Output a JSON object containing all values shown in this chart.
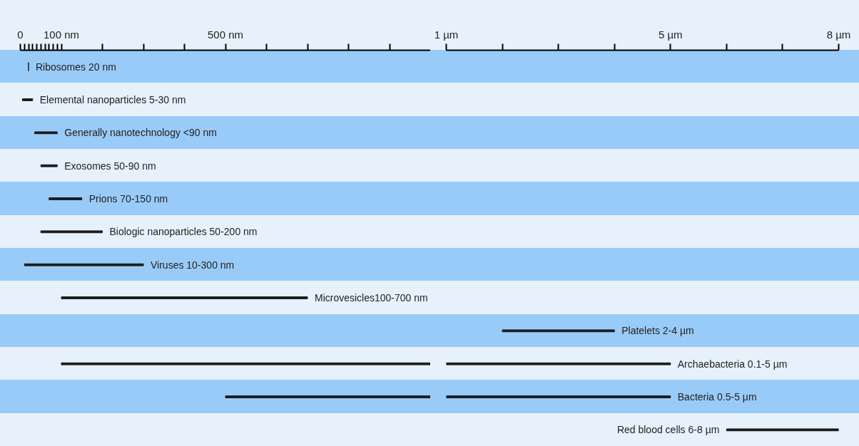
{
  "chart_data": [
    {
      "type": "bar",
      "orientation": "horizontal",
      "categories": [
        "Ribosomes 20 nm",
        "Elemental nanoparticles 5-30 nm",
        "Generally nanotechnology <90 nm",
        "Exosomes 50-90 nm",
        "Prions 70-150 nm",
        "Biologic nanoparticles 50-200 nm",
        "Viruses 10-300 nm",
        "Microvesicles100-700 nm",
        null,
        null,
        null,
        null
      ],
      "base": [
        20,
        5,
        35,
        50,
        70,
        50,
        10,
        100,
        null,
        100,
        500,
        null
      ],
      "values": [
        0,
        25,
        55,
        40,
        80,
        150,
        290,
        600,
        null,
        900,
        500,
        null
      ],
      "color": "#1a1a1a",
      "xlim": [
        0,
        1000
      ],
      "xticks": [
        0,
        {
          "value": 10,
          "label": null
        },
        {
          "value": 20,
          "label": null
        },
        {
          "value": 30,
          "label": null
        },
        {
          "value": 40,
          "label": null
        },
        {
          "value": 50,
          "label": null
        },
        {
          "value": 60,
          "label": null
        },
        {
          "value": 70,
          "label": null
        },
        {
          "value": 80,
          "label": null
        },
        {
          "value": 90,
          "label": null
        },
        {
          "value": 100,
          "label": "100 nm"
        },
        {
          "value": 200,
          "label": null
        },
        {
          "value": 300,
          "label": null
        },
        {
          "value": 400,
          "label": null
        },
        {
          "value": 500,
          "label": "500 nm"
        },
        {
          "value": 600,
          "label": null
        },
        {
          "value": 700,
          "label": null
        },
        {
          "value": 800,
          "label": null
        },
        {
          "value": 900,
          "label": null
        }
      ],
      "tick_labels": "x"
    },
    {
      "type": "bar",
      "orientation": "horizontal",
      "categories": [
        null,
        null,
        null,
        null,
        null,
        null,
        null,
        null,
        "Platelets 2-4 µm",
        "Archaebacteria 0.1-5 µm",
        "Bacteria 0.5-5 µm",
        "Red blood cells 6-8 µm"
      ],
      "base": [
        null,
        null,
        null,
        null,
        null,
        null,
        null,
        null,
        2,
        1,
        1,
        6
      ],
      "values": [
        null,
        null,
        null,
        null,
        null,
        null,
        null,
        null,
        2,
        4,
        4,
        2
      ],
      "color": "#1a1a1a",
      "xlim": [
        1,
        8
      ],
      "xticks": [
        {
          "value": 1,
          "label": "1 µm"
        },
        {
          "value": 2,
          "label": null
        },
        {
          "value": 3,
          "label": null
        },
        {
          "value": 4,
          "label": null
        },
        {
          "value": 5,
          "label": "5 µm"
        },
        {
          "value": 6,
          "label": null
        },
        {
          "value": 7,
          "label": null
        },
        {
          "value": 8,
          "label": "8 µm"
        }
      ],
      "tick_labels": "x"
    }
  ]
}
